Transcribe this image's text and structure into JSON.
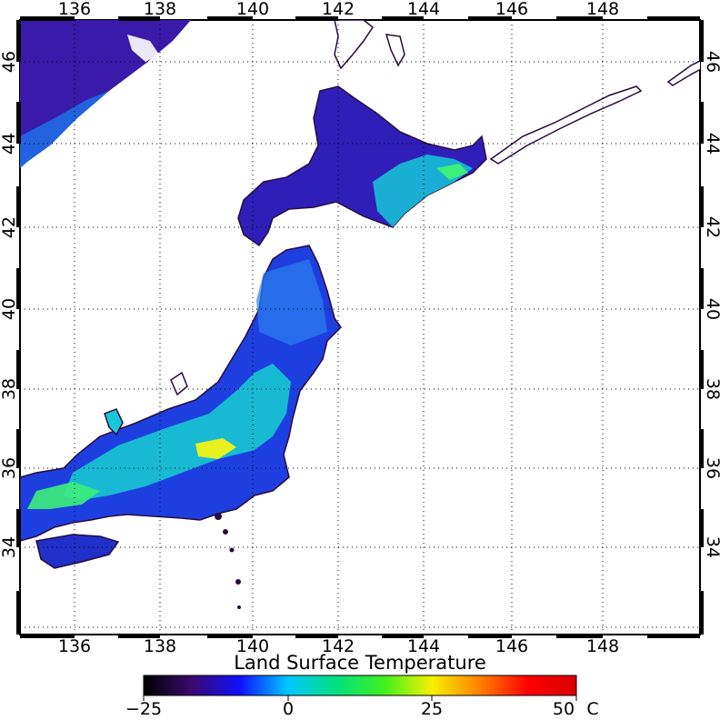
{
  "map": {
    "top_lon_labels": [
      "136",
      "138",
      "140",
      "142",
      "144",
      "146",
      "148"
    ],
    "bottom_lon_labels": [
      "136",
      "138",
      "140",
      "142",
      "144",
      "146",
      "148"
    ],
    "left_lat_labels": [
      "46",
      "44",
      "42",
      "40",
      "38",
      "36",
      "34"
    ],
    "right_lat_labels": [
      "46",
      "44",
      "42",
      "40",
      "38",
      "36",
      "34"
    ],
    "gridlines": "dotted",
    "land_colors": {
      "cold": "#2a0a6e",
      "cool": "#1e2fd6",
      "mild": "#1a8cff",
      "warm": "#18d8c8",
      "hot": "#3cf07a",
      "hottest": "#f0f01e"
    }
  },
  "colorbar": {
    "title": "Land Surface Temperature",
    "tick_labels": [
      "−25",
      "0",
      "25",
      "50"
    ],
    "unit": "C",
    "stops": [
      "#000000",
      "#3a0a6e",
      "#1010ff",
      "#00c8ff",
      "#00e080",
      "#40f020",
      "#f8f000",
      "#ff8000",
      "#ff0000",
      "#d80000"
    ]
  }
}
